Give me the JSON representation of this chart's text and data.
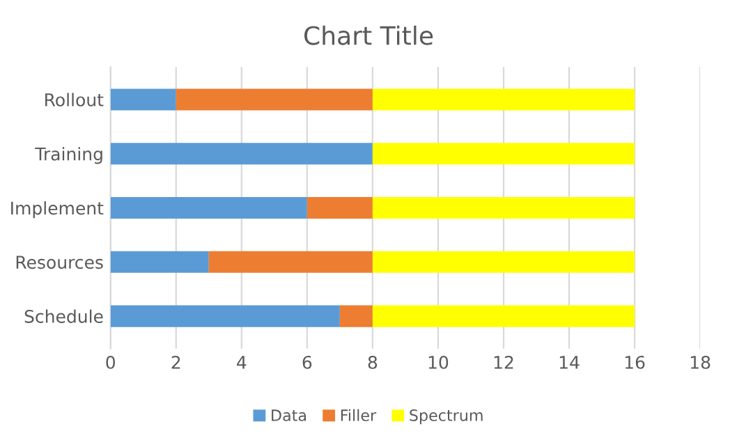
{
  "chart_data": {
    "type": "bar",
    "title": "Chart Title",
    "orientation": "horizontal",
    "stacked": true,
    "categories": [
      "Rollout",
      "Training",
      "Implement",
      "Resources",
      "Schedule"
    ],
    "series": [
      {
        "name": "Data",
        "color": "#5b9bd5",
        "values": [
          2,
          8,
          6,
          3,
          7
        ]
      },
      {
        "name": "Filler",
        "color": "#ed7d31",
        "values": [
          6,
          0,
          2,
          5,
          1
        ]
      },
      {
        "name": "Spectrum",
        "color": "#ffff00",
        "values": [
          8,
          8,
          8,
          8,
          8
        ]
      }
    ],
    "xlim": [
      0,
      18
    ],
    "xticks": [
      0,
      2,
      4,
      6,
      8,
      10,
      12,
      14,
      16,
      18
    ],
    "grid": "x",
    "legend": "bottom"
  }
}
